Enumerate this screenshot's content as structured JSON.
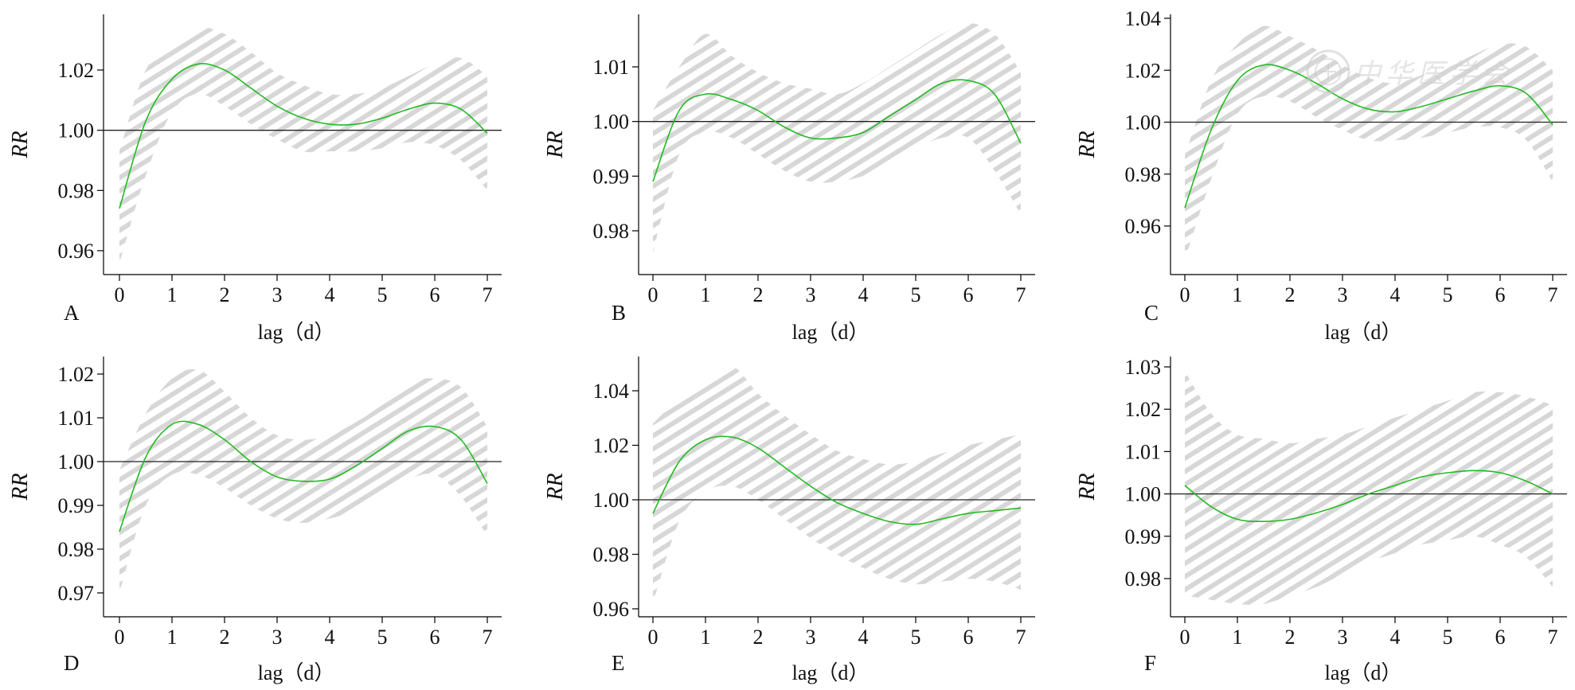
{
  "figure": {
    "watermark_text": "中华医学会",
    "watermark_icon": "society-seal"
  },
  "chart_data": [
    {
      "panel_label": "A",
      "type": "line",
      "xlabel": "lag（d）",
      "ylabel": "RR",
      "xlim": [
        0,
        7
      ],
      "ylim": [
        0.952,
        1.035
      ],
      "xticks": [
        "0",
        "1",
        "2",
        "3",
        "4",
        "5",
        "6",
        "7"
      ],
      "yticks": [
        "0.96",
        "0.98",
        "1.00",
        "1.02"
      ],
      "reference_line": 1.0,
      "line_color": "#22bb22",
      "band_color": "#d6d6d6",
      "x": [
        0,
        0.5,
        1,
        1.5,
        2,
        2.5,
        3,
        3.5,
        4,
        4.5,
        5,
        5.5,
        6,
        6.5,
        7
      ],
      "rr": [
        0.974,
        1.003,
        1.017,
        1.022,
        1.02,
        1.014,
        1.008,
        1.004,
        1.002,
        1.002,
        1.004,
        1.007,
        1.009,
        1.007,
        0.999
      ],
      "lower": [
        0.956,
        0.985,
        1.006,
        1.012,
        1.008,
        1.002,
        0.997,
        0.993,
        0.993,
        0.993,
        0.994,
        0.996,
        0.995,
        0.99,
        0.98
      ],
      "upper": [
        0.993,
        1.02,
        1.028,
        1.034,
        1.032,
        1.026,
        1.019,
        1.015,
        1.012,
        1.012,
        1.014,
        1.018,
        1.022,
        1.024,
        1.018
      ]
    },
    {
      "panel_label": "B",
      "type": "line",
      "xlabel": "lag（d）",
      "ylabel": "RR",
      "xlim": [
        0,
        7
      ],
      "ylim": [
        0.9715,
        1.0195
      ],
      "xticks": [
        "0",
        "1",
        "2",
        "3",
        "4",
        "5",
        "6",
        "7"
      ],
      "yticks": [
        "0.98",
        "0.99",
        "1.00",
        "1.01"
      ],
      "reference_line": 1.0,
      "line_color": "#22bb22",
      "band_color": "#d6d6d6",
      "x": [
        0,
        0.5,
        1,
        1.5,
        2,
        2.5,
        3,
        3.5,
        4,
        4.5,
        5,
        5.5,
        6,
        6.5,
        7
      ],
      "rr": [
        0.989,
        1.002,
        1.005,
        1.004,
        1.002,
        0.999,
        0.997,
        0.997,
        0.998,
        1.001,
        1.004,
        1.007,
        1.0075,
        1.005,
        0.996
      ],
      "lower": [
        0.976,
        0.994,
        0.998,
        0.997,
        0.994,
        0.991,
        0.989,
        0.989,
        0.99,
        0.992,
        0.995,
        0.997,
        0.997,
        0.991,
        0.983
      ],
      "upper": [
        1.002,
        1.01,
        1.016,
        1.012,
        1.009,
        1.007,
        1.006,
        1.005,
        1.007,
        1.01,
        1.013,
        1.016,
        1.018,
        1.016,
        1.009
      ]
    },
    {
      "panel_label": "C",
      "type": "line",
      "xlabel": "lag（d）",
      "ylabel": "RR",
      "xlim": [
        0,
        7
      ],
      "ylim": [
        0.941,
        1.04
      ],
      "xticks": [
        "0",
        "1",
        "2",
        "3",
        "4",
        "5",
        "6",
        "7"
      ],
      "yticks": [
        "0.96",
        "0.98",
        "1.00",
        "1.02",
        "1.04"
      ],
      "reference_line": 1.0,
      "line_color": "#22bb22",
      "band_color": "#d6d6d6",
      "x": [
        0,
        0.5,
        1,
        1.5,
        2,
        2.5,
        3,
        3.5,
        4,
        4.5,
        5,
        5.5,
        6,
        6.5,
        7
      ],
      "rr": [
        0.967,
        0.997,
        1.016,
        1.022,
        1.02,
        1.015,
        1.009,
        1.005,
        1.004,
        1.006,
        1.009,
        1.012,
        1.014,
        1.011,
        0.999
      ],
      "lower": [
        0.947,
        0.978,
        1.003,
        1.01,
        1.008,
        1.002,
        0.997,
        0.993,
        0.993,
        0.994,
        0.996,
        0.998,
        0.998,
        0.993,
        0.977
      ],
      "upper": [
        0.987,
        1.016,
        1.03,
        1.037,
        1.033,
        1.028,
        1.022,
        1.017,
        1.015,
        1.018,
        1.021,
        1.026,
        1.03,
        1.029,
        1.02
      ]
    },
    {
      "panel_label": "D",
      "type": "line",
      "xlabel": "lag（d）",
      "ylabel": "RR",
      "xlim": [
        0,
        7
      ],
      "ylim": [
        0.9655,
        1.0238
      ],
      "xticks": [
        "0",
        "1",
        "2",
        "3",
        "4",
        "5",
        "6",
        "7"
      ],
      "yticks": [
        "0.97",
        "0.98",
        "0.99",
        "1.00",
        "1.01",
        "1.02"
      ],
      "reference_line": 1.0,
      "line_color": "#22bb22",
      "band_color": "#d6d6d6",
      "x": [
        0,
        0.5,
        1,
        1.5,
        2,
        2.5,
        3,
        3.5,
        4,
        4.5,
        5,
        5.5,
        6,
        6.5,
        7
      ],
      "rr": [
        0.984,
        1.001,
        1.0085,
        1.0085,
        1.005,
        1.0,
        0.9965,
        0.9955,
        0.996,
        0.999,
        1.003,
        1.007,
        1.008,
        1.005,
        0.995
      ],
      "lower": [
        0.97,
        0.99,
        0.997,
        0.997,
        0.994,
        0.99,
        0.987,
        0.986,
        0.987,
        0.989,
        0.993,
        0.996,
        0.997,
        0.992,
        0.983
      ],
      "upper": [
        0.998,
        1.011,
        1.019,
        1.021,
        1.016,
        1.01,
        1.006,
        1.005,
        1.006,
        1.009,
        1.013,
        1.018,
        1.019,
        1.017,
        1.008
      ]
    },
    {
      "panel_label": "E",
      "type": "line",
      "xlabel": "lag（d）",
      "ylabel": "RR",
      "xlim": [
        0,
        7
      ],
      "ylim": [
        0.957,
        1.052
      ],
      "xticks": [
        "0",
        "1",
        "2",
        "3",
        "4",
        "5",
        "6",
        "7"
      ],
      "yticks": [
        "0.96",
        "0.98",
        "1.00",
        "1.02",
        "1.04"
      ],
      "reference_line": 1.0,
      "line_color": "#22bb22",
      "band_color": "#d6d6d6",
      "x": [
        0,
        0.5,
        1,
        1.5,
        2,
        2.5,
        3,
        3.5,
        4,
        4.5,
        5,
        5.5,
        6,
        6.5,
        7
      ],
      "rr": [
        0.995,
        1.014,
        1.022,
        1.023,
        1.019,
        1.012,
        1.005,
        0.999,
        0.995,
        0.992,
        0.991,
        0.993,
        0.995,
        0.996,
        0.997
      ],
      "lower": [
        0.962,
        0.992,
        1.003,
        1.005,
        1.0,
        0.993,
        0.986,
        0.98,
        0.975,
        0.971,
        0.969,
        0.97,
        0.971,
        0.97,
        0.967
      ],
      "upper": [
        1.028,
        1.037,
        1.043,
        1.049,
        1.039,
        1.031,
        1.024,
        1.018,
        1.015,
        1.013,
        1.014,
        1.017,
        1.02,
        1.022,
        1.024
      ]
    },
    {
      "panel_label": "F",
      "type": "line",
      "xlabel": "lag（d）",
      "ylabel": "RR",
      "xlim": [
        0,
        7
      ],
      "ylim": [
        0.9713,
        1.0322
      ],
      "xticks": [
        "0",
        "1",
        "2",
        "3",
        "4",
        "5",
        "6",
        "7"
      ],
      "yticks": [
        "0.98",
        "0.99",
        "1.00",
        "1.01",
        "1.02",
        "1.03"
      ],
      "reference_line": 1.0,
      "line_color": "#22bb22",
      "band_color": "#d6d6d6",
      "x": [
        0,
        0.5,
        1,
        1.5,
        2,
        2.5,
        3,
        3.5,
        4,
        4.5,
        5,
        5.5,
        6,
        6.5,
        7
      ],
      "rr": [
        1.002,
        0.997,
        0.994,
        0.9935,
        0.994,
        0.9955,
        0.9975,
        1.0,
        1.002,
        1.004,
        1.005,
        1.0055,
        1.005,
        1.003,
        1.0
      ],
      "lower": [
        0.976,
        0.975,
        0.974,
        0.974,
        0.976,
        0.978,
        0.981,
        0.984,
        0.986,
        0.988,
        0.989,
        0.99,
        0.988,
        0.985,
        0.978
      ],
      "upper": [
        1.029,
        1.019,
        1.014,
        1.013,
        1.012,
        1.013,
        1.014,
        1.016,
        1.018,
        1.02,
        1.022,
        1.024,
        1.024,
        1.023,
        1.021
      ]
    }
  ]
}
